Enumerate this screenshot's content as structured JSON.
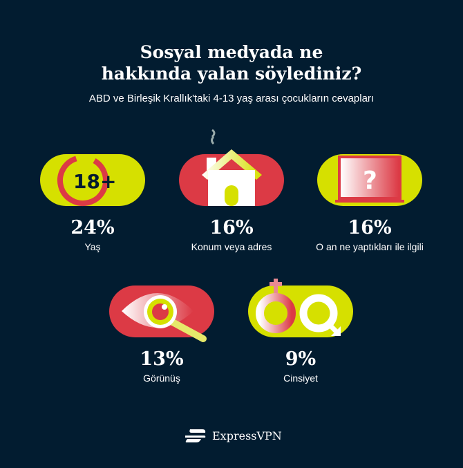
{
  "title_lines": [
    "Sosyal medyada ne",
    "hakkında yalan söylediniz?"
  ],
  "subtitle": "ABD ve Birleşik Krallık'taki 4-13 yaş arası çocukların cevapları",
  "colors": {
    "background": "#021c30",
    "yellow": "#d6e000",
    "red": "#dc3a45"
  },
  "items": [
    {
      "percent": "24%",
      "label": "Yaş",
      "icon": "age-18-plus-icon",
      "badge": "18+"
    },
    {
      "percent": "16%",
      "label": "Konum veya adres",
      "icon": "house-icon"
    },
    {
      "percent": "16%",
      "label": "O an ne yaptıkları ile ilgili",
      "icon": "laptop-question-icon"
    },
    {
      "percent": "13%",
      "label": "Görünüş",
      "icon": "eye-magnifier-icon"
    },
    {
      "percent": "9%",
      "label": "Cinsiyet",
      "icon": "gender-symbols-icon"
    }
  ],
  "brand": "ExpressVPN"
}
